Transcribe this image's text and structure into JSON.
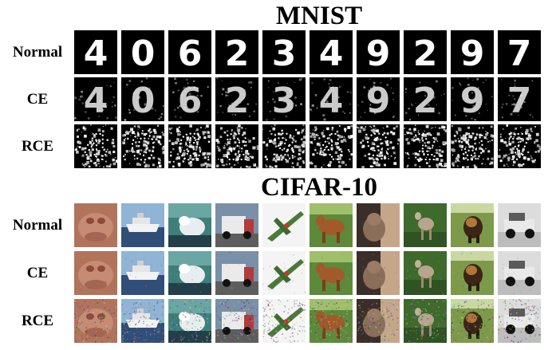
{
  "titles": {
    "mnist": "MNIST",
    "cifar": "CIFAR-10"
  },
  "row_labels": {
    "normal": "Normal",
    "ce": "CE",
    "rce": "RCE"
  },
  "mnist": {
    "digits": [
      "4",
      "0",
      "6",
      "2",
      "3",
      "4",
      "9",
      "2",
      "9",
      "7"
    ],
    "rows": [
      "normal",
      "ce",
      "rce"
    ]
  },
  "cifar": {
    "subjects": [
      "frog",
      "ship",
      "bird",
      "truck",
      "airplane",
      "horse",
      "cat",
      "deer",
      "dog",
      "automobile"
    ],
    "rows": [
      "normal",
      "ce",
      "rce"
    ]
  },
  "colors": {
    "mnist_background": "#000000",
    "mnist_stroke": "#ffffff"
  }
}
